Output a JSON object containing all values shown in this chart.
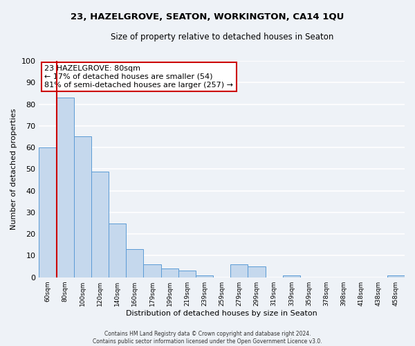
{
  "title": "23, HAZELGROVE, SEATON, WORKINGTON, CA14 1QU",
  "subtitle": "Size of property relative to detached houses in Seaton",
  "xlabel": "Distribution of detached houses by size in Seaton",
  "ylabel": "Number of detached properties",
  "categories": [
    "60sqm",
    "80sqm",
    "100sqm",
    "120sqm",
    "140sqm",
    "160sqm",
    "179sqm",
    "199sqm",
    "219sqm",
    "239sqm",
    "259sqm",
    "279sqm",
    "299sqm",
    "319sqm",
    "339sqm",
    "359sqm",
    "378sqm",
    "398sqm",
    "418sqm",
    "438sqm",
    "458sqm"
  ],
  "values": [
    60,
    83,
    65,
    49,
    25,
    13,
    6,
    4,
    3,
    1,
    0,
    6,
    5,
    0,
    1,
    0,
    0,
    0,
    0,
    0,
    1
  ],
  "bar_color": "#c5d8ed",
  "bar_edge_color": "#5b9bd5",
  "highlight_bar_index": 1,
  "highlight_line_color": "#cc0000",
  "annotation_title": "23 HAZELGROVE: 80sqm",
  "annotation_line1": "← 17% of detached houses are smaller (54)",
  "annotation_line2": "81% of semi-detached houses are larger (257) →",
  "annotation_box_color": "#cc0000",
  "ylim": [
    0,
    100
  ],
  "yticks": [
    0,
    10,
    20,
    30,
    40,
    50,
    60,
    70,
    80,
    90,
    100
  ],
  "footer1": "Contains HM Land Registry data © Crown copyright and database right 2024.",
  "footer2": "Contains public sector information licensed under the Open Government Licence v3.0.",
  "background_color": "#eef2f7",
  "grid_color": "#ffffff"
}
